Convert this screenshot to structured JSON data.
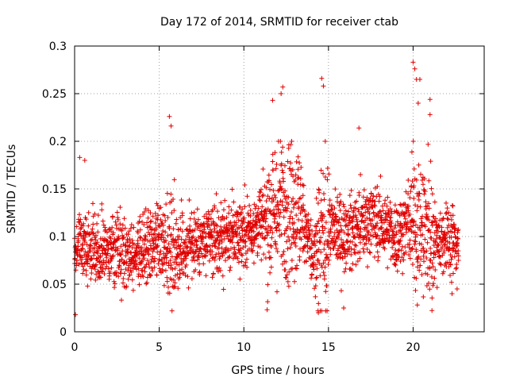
{
  "chart_data": {
    "type": "scatter",
    "title": "Day 172 of 2014, SRMTID for receiver ctab",
    "xlabel": "GPS time / hours",
    "ylabel": "SRMTID / TECUs",
    "xlim": [
      0,
      24.2
    ],
    "ylim": [
      0,
      0.3
    ],
    "x_ticks": [
      0,
      5,
      10,
      15,
      20
    ],
    "x_tick_labels": [
      "0",
      "5",
      "10",
      "15",
      "20"
    ],
    "y_ticks": [
      0,
      0.05,
      0.1,
      0.15,
      0.2,
      0.25,
      0.3
    ],
    "y_tick_labels": [
      "0",
      "0.05",
      "0.1",
      "0.15",
      "0.2",
      "0.25",
      "0.3"
    ],
    "grid": true,
    "marker": "+",
    "color": "#e00000",
    "series": [
      {
        "name": "SRMTID",
        "x_range_hours": [
          0,
          22.7
        ],
        "approx_points": 2400,
        "baseline_trend": [
          {
            "x": 0,
            "y": 0.09
          },
          {
            "x": 2,
            "y": 0.085
          },
          {
            "x": 4,
            "y": 0.085
          },
          {
            "x": 6,
            "y": 0.09
          },
          {
            "x": 8,
            "y": 0.095
          },
          {
            "x": 10,
            "y": 0.105
          },
          {
            "x": 11.5,
            "y": 0.12
          },
          {
            "x": 12.5,
            "y": 0.135
          },
          {
            "x": 13.5,
            "y": 0.12
          },
          {
            "x": 14.2,
            "y": 0.07
          },
          {
            "x": 15,
            "y": 0.11
          },
          {
            "x": 16,
            "y": 0.1
          },
          {
            "x": 17.5,
            "y": 0.12
          },
          {
            "x": 19,
            "y": 0.1
          },
          {
            "x": 20,
            "y": 0.12
          },
          {
            "x": 21,
            "y": 0.1
          },
          {
            "x": 22.7,
            "y": 0.095
          }
        ],
        "notable_points": [
          {
            "x": 0.05,
            "y": 0.018
          },
          {
            "x": 0.3,
            "y": 0.183
          },
          {
            "x": 0.6,
            "y": 0.18
          },
          {
            "x": 5.6,
            "y": 0.226
          },
          {
            "x": 5.7,
            "y": 0.216
          },
          {
            "x": 12.3,
            "y": 0.257
          },
          {
            "x": 11.7,
            "y": 0.243
          },
          {
            "x": 12.2,
            "y": 0.25
          },
          {
            "x": 14.6,
            "y": 0.266
          },
          {
            "x": 14.7,
            "y": 0.258
          },
          {
            "x": 14.4,
            "y": 0.02
          },
          {
            "x": 15.9,
            "y": 0.025
          },
          {
            "x": 16.8,
            "y": 0.214
          },
          {
            "x": 20.0,
            "y": 0.283
          },
          {
            "x": 20.1,
            "y": 0.276
          },
          {
            "x": 20.2,
            "y": 0.265
          },
          {
            "x": 20.4,
            "y": 0.265
          },
          {
            "x": 21.0,
            "y": 0.244
          },
          {
            "x": 20.3,
            "y": 0.24
          },
          {
            "x": 21.0,
            "y": 0.228
          },
          {
            "x": 22.3,
            "y": 0.04
          },
          {
            "x": 22.6,
            "y": 0.045
          }
        ]
      }
    ]
  }
}
